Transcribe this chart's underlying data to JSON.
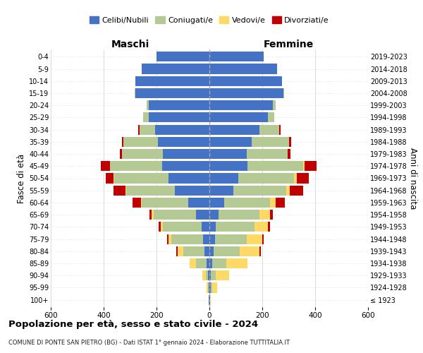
{
  "age_groups": [
    "100+",
    "95-99",
    "90-94",
    "85-89",
    "80-84",
    "75-79",
    "70-74",
    "65-69",
    "60-64",
    "55-59",
    "50-54",
    "45-49",
    "40-44",
    "35-39",
    "30-34",
    "25-29",
    "20-24",
    "15-19",
    "10-14",
    "5-9",
    "0-4"
  ],
  "birth_years": [
    "≤ 1923",
    "1924-1928",
    "1929-1933",
    "1934-1938",
    "1939-1943",
    "1944-1948",
    "1949-1953",
    "1954-1958",
    "1959-1963",
    "1964-1968",
    "1969-1973",
    "1974-1978",
    "1979-1983",
    "1984-1988",
    "1989-1993",
    "1994-1998",
    "1999-2003",
    "2004-2008",
    "2009-2013",
    "2014-2018",
    "2019-2023"
  ],
  "colors": {
    "celibi": "#4472c4",
    "coniugati": "#b5c994",
    "vedovi": "#ffd966",
    "divorziati": "#c00000"
  },
  "maschi": {
    "celibi": [
      2,
      3,
      5,
      10,
      20,
      25,
      30,
      50,
      80,
      130,
      155,
      180,
      175,
      195,
      205,
      230,
      230,
      280,
      280,
      255,
      200
    ],
    "coniugati": [
      0,
      2,
      8,
      40,
      80,
      120,
      145,
      160,
      175,
      185,
      205,
      195,
      155,
      130,
      60,
      20,
      8,
      2,
      0,
      0,
      0
    ],
    "vedovi": [
      0,
      5,
      15,
      25,
      20,
      10,
      10,
      8,
      5,
      3,
      2,
      2,
      0,
      0,
      0,
      0,
      0,
      0,
      0,
      0,
      0
    ],
    "divorziati": [
      0,
      0,
      0,
      0,
      5,
      5,
      8,
      8,
      30,
      45,
      30,
      35,
      10,
      5,
      5,
      0,
      0,
      0,
      0,
      0,
      0
    ]
  },
  "femmine": {
    "nubili": [
      2,
      5,
      5,
      10,
      15,
      20,
      25,
      35,
      55,
      90,
      110,
      145,
      140,
      160,
      190,
      220,
      240,
      280,
      275,
      255,
      205
    ],
    "coniugate": [
      0,
      5,
      20,
      55,
      100,
      120,
      145,
      155,
      175,
      200,
      210,
      210,
      155,
      140,
      75,
      25,
      10,
      2,
      0,
      0,
      0
    ],
    "vedove": [
      2,
      20,
      50,
      80,
      75,
      60,
      50,
      40,
      20,
      15,
      10,
      5,
      2,
      0,
      0,
      0,
      0,
      0,
      0,
      0,
      0
    ],
    "divorziate": [
      0,
      0,
      0,
      0,
      5,
      5,
      10,
      10,
      35,
      50,
      45,
      45,
      10,
      8,
      5,
      0,
      0,
      0,
      0,
      0,
      0
    ]
  },
  "xlim": 600,
  "title": "Popolazione per età, sesso e stato civile - 2024",
  "subtitle": "COMUNE DI PONTE SAN PIETRO (BG) - Dati ISTAT 1° gennaio 2024 - Elaborazione TUTTITALIA.IT",
  "ylabel_left": "Fasce di età",
  "ylabel_right": "Anni di nascita",
  "xlabel_left": "Maschi",
  "xlabel_right": "Femmine"
}
